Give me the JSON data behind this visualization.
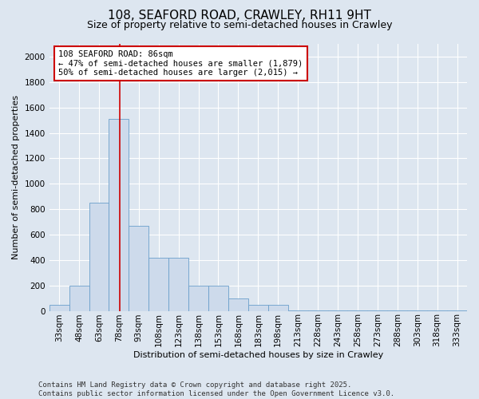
{
  "title_line1": "108, SEAFORD ROAD, CRAWLEY, RH11 9HT",
  "title_line2": "Size of property relative to semi-detached houses in Crawley",
  "xlabel": "Distribution of semi-detached houses by size in Crawley",
  "ylabel": "Number of semi-detached properties",
  "bin_labels": [
    "33sqm",
    "48sqm",
    "63sqm",
    "78sqm",
    "93sqm",
    "108sqm",
    "123sqm",
    "138sqm",
    "153sqm",
    "168sqm",
    "183sqm",
    "198sqm",
    "213sqm",
    "228sqm",
    "243sqm",
    "258sqm",
    "273sqm",
    "288sqm",
    "303sqm",
    "318sqm",
    "333sqm"
  ],
  "bin_edges": [
    33,
    48,
    63,
    78,
    93,
    108,
    123,
    138,
    153,
    168,
    183,
    198,
    213,
    228,
    243,
    258,
    273,
    288,
    303,
    318,
    333
  ],
  "bar_heights": [
    50,
    200,
    850,
    1510,
    670,
    420,
    420,
    200,
    200,
    100,
    50,
    50,
    5,
    5,
    5,
    5,
    5,
    5,
    5,
    5,
    5
  ],
  "bar_color": "#cddaeb",
  "bar_edge_color": "#6a9fcb",
  "vline_x": 86,
  "vline_color": "#cc0000",
  "annotation_text": "108 SEAFORD ROAD: 86sqm\n← 47% of semi-detached houses are smaller (1,879)\n50% of semi-detached houses are larger (2,015) →",
  "annotation_box_color": "white",
  "annotation_box_edge_color": "#cc0000",
  "ylim": [
    0,
    2100
  ],
  "yticks": [
    0,
    200,
    400,
    600,
    800,
    1000,
    1200,
    1400,
    1600,
    1800,
    2000
  ],
  "background_color": "#dde6f0",
  "plot_background_color": "#dde6f0",
  "grid_color": "white",
  "footer_text": "Contains HM Land Registry data © Crown copyright and database right 2025.\nContains public sector information licensed under the Open Government Licence v3.0.",
  "title_fontsize": 11,
  "subtitle_fontsize": 9,
  "axis_label_fontsize": 8,
  "tick_fontsize": 7.5,
  "annotation_fontsize": 7.5,
  "footer_fontsize": 6.5
}
